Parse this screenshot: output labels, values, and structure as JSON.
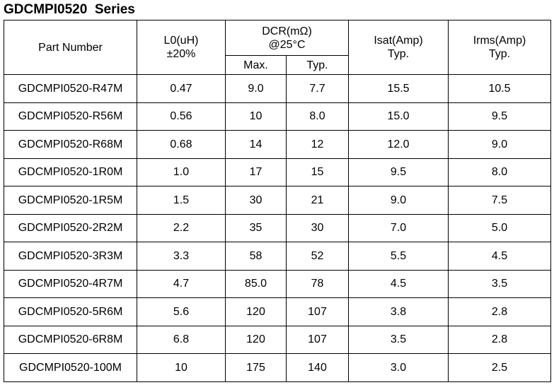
{
  "title": "GDCMPI0520  Series",
  "header": {
    "part_number": "Part Number",
    "l0": [
      "L0(uH)",
      "±20%"
    ],
    "dcr": [
      "DCR(mΩ)",
      "@25°C"
    ],
    "dcr_max": "Max.",
    "dcr_typ": "Typ.",
    "isat": [
      "Isat(Amp)",
      "Typ."
    ],
    "irms": [
      "Irms(Amp)",
      "Typ."
    ]
  },
  "table": {
    "rows": [
      [
        "GDCMPI0520-R47M",
        "0.47",
        "9.0",
        "7.7",
        "15.5",
        "10.5"
      ],
      [
        "GDCMPI0520-R56M",
        "0.56",
        "10",
        "8.0",
        "15.0",
        "9.5"
      ],
      [
        "GDCMPI0520-R68M",
        "0.68",
        "14",
        "12",
        "12.0",
        "9.0"
      ],
      [
        "GDCMPI0520-1R0M",
        "1.0",
        "17",
        "15",
        "9.5",
        "8.0"
      ],
      [
        "GDCMPI0520-1R5M",
        "1.5",
        "30",
        "21",
        "9.0",
        "7.5"
      ],
      [
        "GDCMPI0520-2R2M",
        "2.2",
        "35",
        "30",
        "7.0",
        "5.0"
      ],
      [
        "GDCMPI0520-3R3M",
        "3.3",
        "58",
        "52",
        "5.5",
        "4.5"
      ],
      [
        "GDCMPI0520-4R7M",
        "4.7",
        "85.0",
        "78",
        "4.5",
        "3.5"
      ],
      [
        "GDCMPI0520-5R6M",
        "5.6",
        "120",
        "107",
        "3.8",
        "2.8"
      ],
      [
        "GDCMPI0520-6R8M",
        "6.8",
        "120",
        "107",
        "3.5",
        "2.8"
      ],
      [
        "GDCMPI0520-100M",
        "10",
        "175",
        "140",
        "3.0",
        "2.5"
      ]
    ]
  }
}
